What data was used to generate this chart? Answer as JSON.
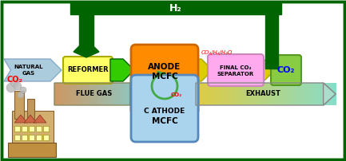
{
  "bg_color": "#ffffff",
  "h2_label": "H₂",
  "natural_gas_label": "NATURAL\nGAS",
  "reformer_label": "REFORMER",
  "anode_line1": "ANODE",
  "anode_line2": "MCFC",
  "cathode_line1": "C ATHODE",
  "cathode_line2": "MCFC",
  "final_sep_line1": "FINAL CO₂",
  "final_sep_line2": "SEPARATOR",
  "co2_box_label": "CO₂",
  "flue_gas_label": "FLUE GAS",
  "exhaust_label": "EXHAUST",
  "co2_left_label": "CO₂",
  "co2_circle_label": "CO₂",
  "co2h2h2o_label": "CO₂/H₂/H₂O",
  "green_dark": "#006400",
  "green_bright": "#33cc00",
  "yellow_reformer": "#ffff66",
  "orange_anode": "#ff8c00",
  "light_blue_cathode": "#aad4ee",
  "pink_separator": "#ffaaee",
  "green_co2box": "#88cc44",
  "flue_color1": "#cc9933",
  "flue_color2": "#aaccaa",
  "exhaust_color1": "#ddcc44",
  "exhaust_color2": "#aaddcc",
  "nat_gas_color": "#aaccdd",
  "white": "#ffffff",
  "red": "#ff0000",
  "blue": "#0000ff",
  "black": "#000000"
}
